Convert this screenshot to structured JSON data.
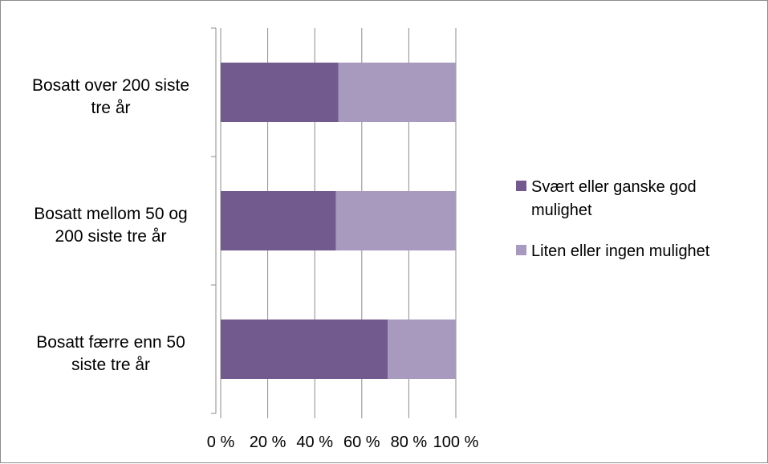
{
  "chart_data": {
    "type": "bar",
    "orientation": "horizontal",
    "stacked": "percent",
    "categories": [
      [
        "Bosatt over 200 siste",
        "tre år"
      ],
      [
        "Bosatt mellom 50 og",
        "200 siste tre år"
      ],
      [
        "Bosatt færre enn 50",
        "siste tre år"
      ]
    ],
    "series": [
      {
        "name": "Svært eller ganske god mulighet",
        "legend_lines": [
          "Svært eller ganske god",
          "mulighet"
        ],
        "color": "#735a8e",
        "values": [
          50,
          49,
          71
        ]
      },
      {
        "name": "Liten eller ingen mulighet",
        "legend_lines": [
          "Liten eller ingen mulighet"
        ],
        "color": "#a899bf",
        "values": [
          50,
          51,
          29
        ]
      }
    ],
    "x_ticks": [
      "0 %",
      "20 %",
      "40 %",
      "60 %",
      "80 %",
      "100 %"
    ],
    "xlim": [
      0,
      100
    ],
    "grid": "vertical",
    "legend_position": "right"
  }
}
